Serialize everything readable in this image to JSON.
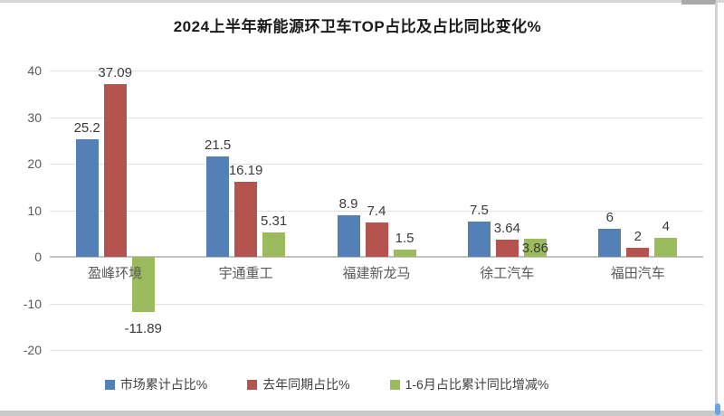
{
  "window": {
    "scrollbar_vertical_thumb": "scrollbar-thumb",
    "scrollbar_horizontal_thumb": "scrollbar-thumb"
  },
  "chart_data": {
    "type": "bar",
    "title": "2024上半年新能源环卫车TOP占比及占比同比变化%",
    "categories": [
      "盈峰环境",
      "宇通重工",
      "福建新龙马",
      "徐工汽车",
      "福田汽车"
    ],
    "series": [
      {
        "name": "市场累计占比%",
        "color": "#5480b8",
        "values": [
          25.2,
          21.5,
          8.9,
          7.5,
          6
        ]
      },
      {
        "name": "去年同期占比%",
        "color": "#b5534f",
        "values": [
          37.09,
          16.19,
          7.4,
          3.64,
          2
        ]
      },
      {
        "name": "1-6月占比累计同比增减%",
        "color": "#9cbb5c",
        "values": [
          -11.89,
          5.31,
          1.5,
          3.86,
          4
        ]
      }
    ],
    "ylim": [
      -20,
      40
    ],
    "ytick_step": 10,
    "grid": true,
    "data_labels": true,
    "legend_position": "bottom",
    "axis_label_color": "#595959",
    "data_label_color": "#3b3b3b"
  }
}
